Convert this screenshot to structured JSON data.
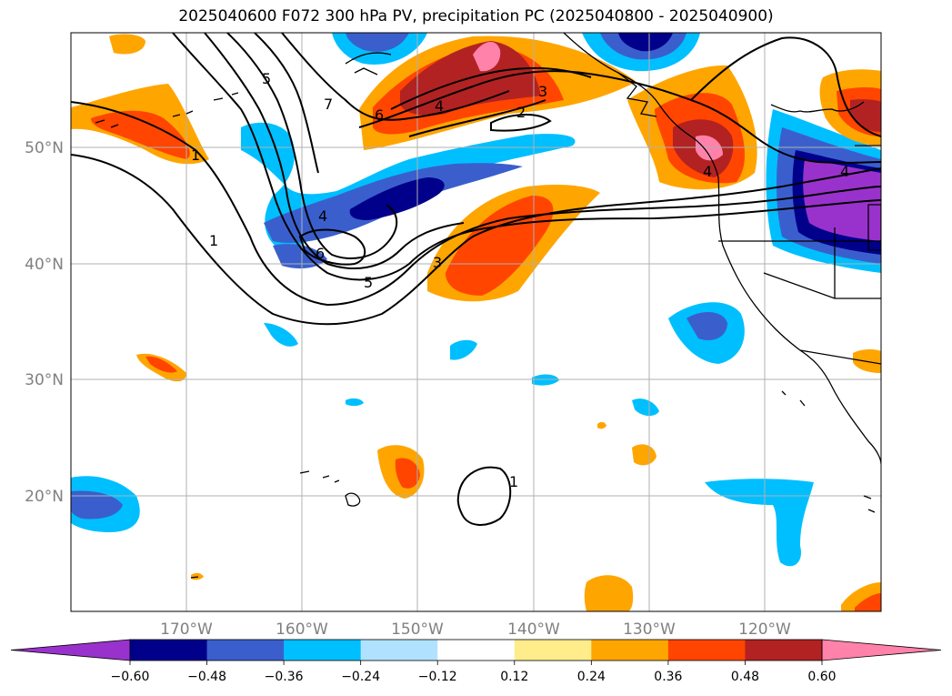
{
  "title": "2025040600 F072 300 hPa PV, precipitation PC (2025040800 - 2025040900)",
  "map": {
    "lon_labels": [
      "170°W",
      "160°W",
      "150°W",
      "140°W",
      "130°W",
      "120°W"
    ],
    "lat_labels": [
      "50°N",
      "40°N",
      "30°N",
      "20°N"
    ],
    "contour_labels": [
      "5",
      "7",
      "6",
      "4",
      "3",
      "2",
      "1",
      "4",
      "6",
      "5",
      "3",
      "1",
      "1",
      "4",
      "4"
    ]
  },
  "colorbar": {
    "colors": [
      "#9932cc",
      "#00008b",
      "#3a5fcd",
      "#00bfff",
      "#b0e2ff",
      "#ffffff",
      "#ffec8b",
      "#ffa500",
      "#ff4500",
      "#b22222",
      "#ff82ab"
    ],
    "under_color": "#9932cc",
    "over_color": "#ff82ab",
    "tick_labels": [
      "−0.60",
      "−0.48",
      "−0.36",
      "−0.24",
      "−0.12",
      "0.12",
      "0.24",
      "0.36",
      "0.48",
      "0.60"
    ]
  }
}
